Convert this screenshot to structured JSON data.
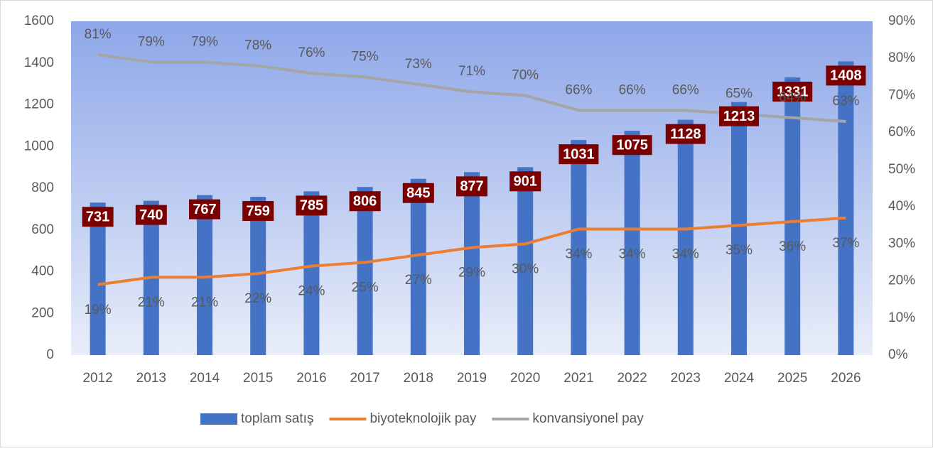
{
  "chart_data": {
    "type": "bar_line",
    "categories": [
      "2012",
      "2013",
      "2014",
      "2015",
      "2016",
      "2017",
      "2018",
      "2019",
      "2020",
      "2021",
      "2022",
      "2023",
      "2024",
      "2025",
      "2026"
    ],
    "series": [
      {
        "name": "toplam satış",
        "type": "bar",
        "color": "#4472c4",
        "values": [
          731,
          740,
          767,
          759,
          785,
          806,
          845,
          877,
          901,
          1031,
          1075,
          1128,
          1213,
          1331,
          1408
        ]
      },
      {
        "name": "biyoteknolojik pay",
        "type": "line",
        "axis": "y2",
        "color": "#ed7d31",
        "values": [
          19,
          21,
          21,
          22,
          24,
          25,
          27,
          29,
          30,
          34,
          34,
          34,
          35,
          36,
          37
        ],
        "value_labels": [
          "19%",
          "21%",
          "21%",
          "22%",
          "24%",
          "25%",
          "27%",
          "29%",
          "30%",
          "34%",
          "34%",
          "34%",
          "35%",
          "36%",
          "37%"
        ]
      },
      {
        "name": "konvansiyonel pay",
        "type": "line",
        "axis": "y2",
        "color": "#a5a5a5",
        "values": [
          81,
          79,
          79,
          78,
          76,
          75,
          73,
          71,
          70,
          66,
          66,
          66,
          65,
          64,
          63
        ],
        "value_labels": [
          "81%",
          "79%",
          "79%",
          "78%",
          "76%",
          "75%",
          "73%",
          "71%",
          "70%",
          "66%",
          "66%",
          "66%",
          "65%",
          "64%",
          "63%"
        ]
      }
    ],
    "ylim": [
      0,
      1600
    ],
    "yticks": [
      0,
      200,
      400,
      600,
      800,
      1000,
      1200,
      1400,
      1600
    ],
    "y2lim": [
      0,
      90
    ],
    "y2ticks": [
      {
        "value": 0,
        "label": "0%"
      },
      {
        "value": 10,
        "label": "10%"
      },
      {
        "value": 20,
        "label": "20%"
      },
      {
        "value": 30,
        "label": "30%"
      },
      {
        "value": 40,
        "label": "40%"
      },
      {
        "value": 50,
        "label": "50%"
      },
      {
        "value": 60,
        "label": "60%"
      },
      {
        "value": 70,
        "label": "70%"
      },
      {
        "value": 80,
        "label": "80%"
      },
      {
        "value": 90,
        "label": "90%"
      }
    ],
    "legend": "bottom"
  }
}
